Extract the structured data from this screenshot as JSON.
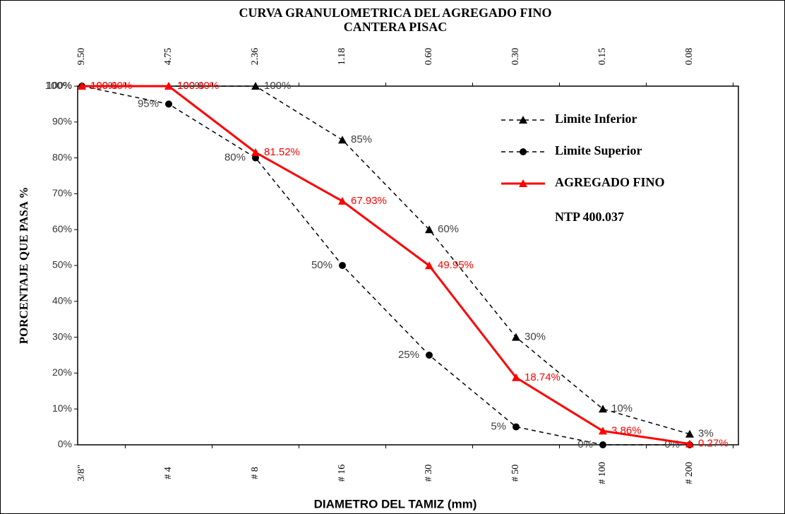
{
  "chart_data": {
    "type": "line",
    "title": "CURVA GRANULOMETRICA DEL AGREGADO FINO",
    "subtitle": "CANTERA PISAC",
    "x_label": "DIAMETRO DEL TAMIZ (mm)",
    "y_label": "PORCENTAJE QUE PASA %",
    "legend_note": "NTP 400.037",
    "categories": [
      "3/8\"",
      "# 4",
      "# 8",
      "# 16",
      "# 30",
      "# 50",
      "# 100",
      "# 200"
    ],
    "top_categories": [
      "9.50",
      "4.75",
      "2.36",
      "1.18",
      "0.60",
      "0.30",
      "0.15",
      "0.08"
    ],
    "ylim": [
      0,
      100
    ],
    "yticks": [
      {
        "value": 0,
        "label": "0%"
      },
      {
        "value": 10,
        "label": "10%"
      },
      {
        "value": 20,
        "label": "20%"
      },
      {
        "value": 30,
        "label": "30%"
      },
      {
        "value": 40,
        "label": "40%"
      },
      {
        "value": 50,
        "label": "50%"
      },
      {
        "value": 60,
        "label": "60%"
      },
      {
        "value": 70,
        "label": "70%"
      },
      {
        "value": 80,
        "label": "80%"
      },
      {
        "value": 90,
        "label": "90%"
      },
      {
        "value": 100,
        "label": "100%"
      }
    ],
    "series": [
      {
        "name": "Limite Inferior",
        "color": "#000000",
        "marker": "triangle",
        "dashed": true,
        "values": [
          100,
          100,
          100,
          85,
          60,
          30,
          10,
          3
        ],
        "value_labels": [
          "100%",
          "100%",
          "100%",
          "85%",
          "60%",
          "30%",
          "10%",
          "3%"
        ]
      },
      {
        "name": "Limite Superior",
        "color": "#000000",
        "marker": "circle",
        "dashed": true,
        "values": [
          100,
          95,
          80,
          50,
          25,
          5,
          0,
          0
        ],
        "value_labels": [
          "100%",
          "95%",
          "80%",
          "50%",
          "25%",
          "5%",
          "0%",
          "0%"
        ]
      },
      {
        "name": "AGREGADO FINO",
        "color": "#ff0000",
        "marker": "triangle",
        "dashed": false,
        "values": [
          100,
          100,
          81.52,
          67.93,
          49.95,
          18.74,
          3.86,
          0.27
        ],
        "value_labels": [
          "100.00%",
          "100.00%",
          "81.52%",
          "67.93%",
          "49.95%",
          "18.74%",
          "3.86%",
          "0.27%"
        ]
      }
    ]
  }
}
